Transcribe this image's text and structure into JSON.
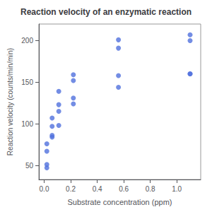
{
  "chart_data": {
    "type": "scatter",
    "title": "Reaction velocity of an enzymatic reaction",
    "xlabel": "Substrate concentration (ppm)",
    "ylabel": "Reaction velocity (counts/min/min)",
    "x": [
      0.02,
      0.02,
      0.06,
      0.06,
      0.11,
      0.11,
      0.22,
      0.22,
      0.56,
      0.56,
      1.1,
      1.1,
      0.02,
      0.02,
      0.06,
      0.06,
      0.11,
      0.11,
      0.22,
      0.22,
      0.56,
      0.56,
      1.1,
      1.1
    ],
    "values": [
      76,
      47,
      97,
      107,
      123,
      139,
      159,
      152,
      191,
      201,
      207,
      200,
      67,
      51,
      84,
      86,
      98,
      115,
      131,
      124,
      144,
      158,
      160,
      160
    ],
    "xlim": [
      -0.04,
      1.18
    ],
    "ylim": [
      33,
      220
    ],
    "xticks": [
      {
        "value": 0.0,
        "label": "0.0"
      },
      {
        "value": 0.2,
        "label": "0.2"
      },
      {
        "value": 0.4,
        "label": "0.4"
      },
      {
        "value": 0.6,
        "label": "0.6"
      },
      {
        "value": 0.8,
        "label": "0.8"
      },
      {
        "value": 1.0,
        "label": "1.0"
      }
    ],
    "yticks": [
      50,
      100,
      150,
      200
    ],
    "grid": false
  }
}
